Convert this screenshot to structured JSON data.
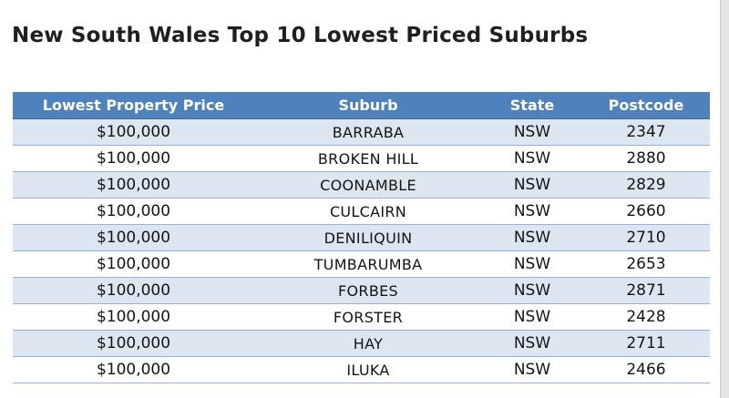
{
  "title": "New South Wales Top 10 Lowest Priced Suburbs",
  "table": {
    "headers": [
      "Lowest Property Price",
      "Suburb",
      "State",
      "Postcode"
    ],
    "rows": [
      [
        "$100,000",
        "BARRABA",
        "NSW",
        "2347"
      ],
      [
        "$100,000",
        "BROKEN HILL",
        "NSW",
        "2880"
      ],
      [
        "$100,000",
        "COONAMBLE",
        "NSW",
        "2829"
      ],
      [
        "$100,000",
        "CULCAIRN",
        "NSW",
        "2660"
      ],
      [
        "$100,000",
        "DENILIQUIN",
        "NSW",
        "2710"
      ],
      [
        "$100,000",
        "TUMBARUMBA",
        "NSW",
        "2653"
      ],
      [
        "$100,000",
        "FORBES",
        "NSW",
        "2871"
      ],
      [
        "$100,000",
        "FORSTER",
        "NSW",
        "2428"
      ],
      [
        "$100,000",
        "HAY",
        "NSW",
        "2711"
      ],
      [
        "$100,000",
        "ILUKA",
        "NSW",
        "2466"
      ]
    ]
  },
  "colors": {
    "header_bg": "#4f81bd",
    "header_text": "#ffffff",
    "band_row": "#dce6f1",
    "row_rule": "#95b3d7"
  }
}
